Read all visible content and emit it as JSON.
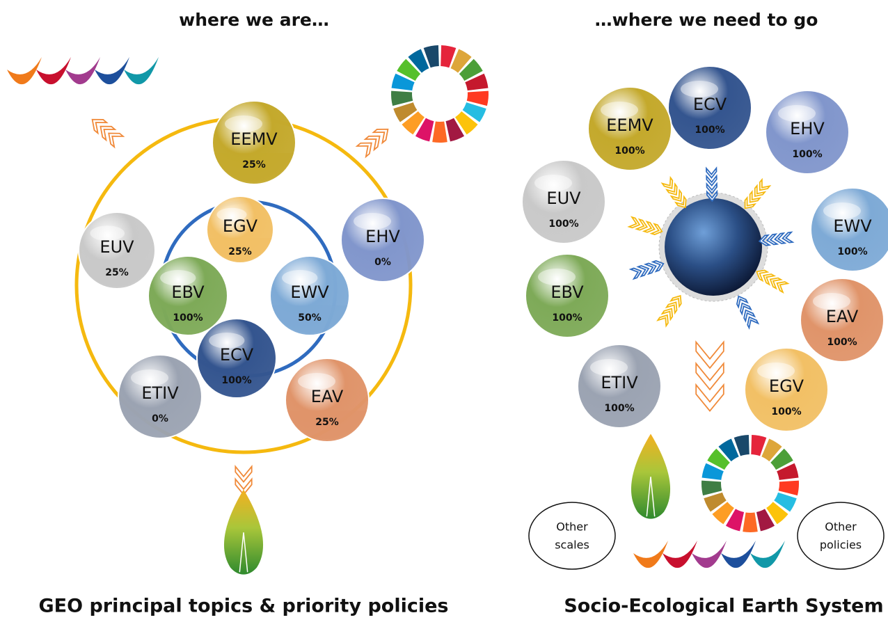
{
  "left": {
    "title": "where we are…",
    "caption": "GEO principal topics & priority policies",
    "nodes": [
      {
        "label": "EEMV",
        "level": "25%",
        "color": "#c4a92c"
      },
      {
        "label": "EGV",
        "level": "25%",
        "color": "#f2c065"
      },
      {
        "label": "EUV",
        "level": "25%",
        "color": "#c9c9c9"
      },
      {
        "label": "EHV",
        "level": "0%",
        "color": "#8196cc"
      },
      {
        "label": "EBV",
        "level": "100%",
        "color": "#7eaa58"
      },
      {
        "label": "EWV",
        "level": "50%",
        "color": "#7eaad6"
      },
      {
        "label": "ECV",
        "level": "100%",
        "color": "#34558f"
      },
      {
        "label": "ETIV",
        "level": "0%",
        "color": "#9ba3b2"
      },
      {
        "label": "EAV",
        "level": "25%",
        "color": "#e0946a"
      }
    ]
  },
  "right": {
    "title": "…where we need to go",
    "caption": "Socio-Ecological Earth System",
    "nodes": [
      {
        "label": "ECV",
        "level": "100%",
        "color": "#34558f"
      },
      {
        "label": "EEMV",
        "level": "100%",
        "color": "#c4a92c"
      },
      {
        "label": "EHV",
        "level": "100%",
        "color": "#8196cc"
      },
      {
        "label": "EUV",
        "level": "100%",
        "color": "#c9c9c9"
      },
      {
        "label": "EWV",
        "level": "100%",
        "color": "#7eaad6"
      },
      {
        "label": "EBV",
        "level": "100%",
        "color": "#7eaa58"
      },
      {
        "label": "EAV",
        "level": "100%",
        "color": "#e0946a"
      },
      {
        "label": "ETIV",
        "level": "100%",
        "color": "#9ba3b2"
      },
      {
        "label": "EGV",
        "level": "100%",
        "color": "#f2c065"
      }
    ],
    "others": [
      [
        "Other",
        "scales"
      ],
      [
        "Other",
        "policies"
      ]
    ]
  }
}
